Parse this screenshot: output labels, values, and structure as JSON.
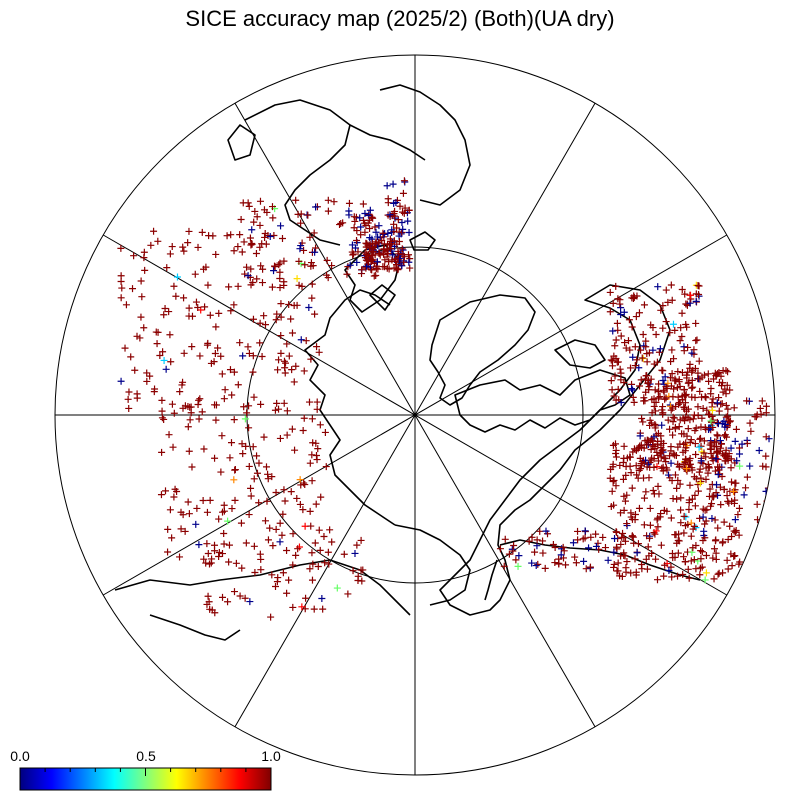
{
  "title": "SICE accuracy map (2025/2) (Both)(UA dry)",
  "projection": "north-polar-stereographic",
  "colorbar": {
    "labels": [
      "0.0",
      "0.5",
      "1.0"
    ],
    "range": [
      0.0,
      1.0
    ],
    "colormap": "jet",
    "colors": [
      "#00007f",
      "#0000ff",
      "#007fff",
      "#00ffff",
      "#7fff7f",
      "#ffff00",
      "#ff7f00",
      "#ff0000",
      "#7f0000"
    ]
  },
  "marker": "+",
  "dominant_marker_color": "#8b0000",
  "secondary_marker_color": "#00008b"
}
